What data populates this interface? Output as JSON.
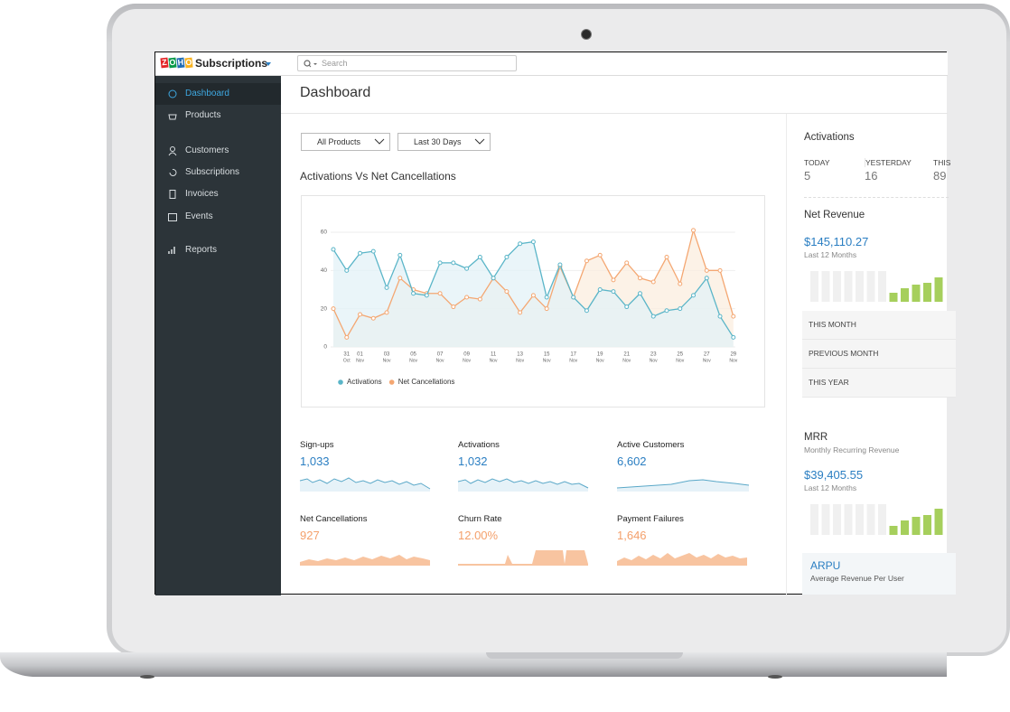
{
  "app": {
    "logo": [
      "Z",
      "O",
      "H",
      "O"
    ],
    "name": "Subscriptions",
    "search_placeholder": "Search"
  },
  "sidebar": {
    "items": [
      "Dashboard",
      "Products",
      "Customers",
      "Subscriptions",
      "Invoices",
      "Events",
      "Reports"
    ],
    "active": 0
  },
  "header": {
    "title": "Dashboard"
  },
  "filters": [
    "All Products",
    "Last 30 Days"
  ],
  "chart_data": {
    "type": "line",
    "title": "Activations Vs Net Cancellations",
    "categories": [
      null,
      [
        "31",
        "Oct"
      ],
      [
        "01",
        "Nov"
      ],
      null,
      [
        "03",
        "Nov"
      ],
      null,
      [
        "05",
        "Nov"
      ],
      null,
      [
        "07",
        "Nov"
      ],
      null,
      [
        "09",
        "Nov"
      ],
      null,
      [
        "11",
        "Nov"
      ],
      null,
      [
        "13",
        "Nov"
      ],
      null,
      [
        "15",
        "Nov"
      ],
      null,
      [
        "17",
        "Nov"
      ],
      null,
      [
        "19",
        "Nov"
      ],
      null,
      [
        "21",
        "Nov"
      ],
      null,
      [
        "23",
        "Nov"
      ],
      null,
      [
        "25",
        "Nov"
      ],
      null,
      [
        "27",
        "Nov"
      ],
      null,
      [
        "29",
        "Nov"
      ]
    ],
    "series": [
      {
        "name": "Activations",
        "color": "#5ab5c8",
        "fill": "#e3f1f7",
        "values": [
          51,
          40,
          49,
          50,
          31,
          48,
          28,
          27,
          44,
          44,
          41,
          47,
          36,
          47,
          54,
          55,
          26,
          43,
          26,
          19,
          30,
          29,
          21,
          28,
          16,
          19,
          20,
          27,
          36,
          16,
          5
        ]
      },
      {
        "name": "Net Cancellations",
        "color": "#f4a772",
        "fill": "#fbeedf",
        "values": [
          20,
          5,
          17,
          15,
          18,
          36,
          30,
          28,
          28,
          21,
          26,
          25,
          36,
          29,
          18,
          27,
          20,
          42,
          26,
          45,
          48,
          35,
          44,
          36,
          34,
          47,
          33,
          61,
          40,
          40,
          16
        ]
      }
    ],
    "ylim": [
      0,
      60
    ],
    "yticks": [
      0,
      20,
      40,
      60
    ],
    "grid": true,
    "legend": "bottom-left"
  },
  "kpis": [
    {
      "label": "Sign-ups",
      "value": "1,033",
      "color": "#2a7ec2"
    },
    {
      "label": "Activations",
      "value": "1,032",
      "color": "#2a7ec2"
    },
    {
      "label": "Active Customers",
      "value": "6,602",
      "color": "#2a7ec2"
    },
    {
      "label": "Net Cancellations",
      "value": "927",
      "color": "#f4a06b"
    },
    {
      "label": "Churn Rate",
      "value": "12.00%",
      "color": "#f4a06b"
    },
    {
      "label": "Payment Failures",
      "value": "1,646",
      "color": "#f4a06b"
    }
  ],
  "activations": {
    "title": "Activations",
    "columns": [
      {
        "label": "TODAY",
        "value": "5"
      },
      {
        "label": "YESTERDAY",
        "value": "16"
      },
      {
        "label": "THIS",
        "value": "89"
      }
    ]
  },
  "net_revenue": {
    "title": "Net Revenue",
    "amount": "$145,110.27",
    "period": "Last 12 Months",
    "rows": [
      "THIS MONTH",
      "PREVIOUS MONTH",
      "THIS YEAR"
    ]
  },
  "mrr": {
    "title": "MRR",
    "subtitle": "Monthly Recurring Revenue",
    "amount": "$39,405.55",
    "period": "Last 12 Months"
  },
  "arpu": {
    "title": "ARPU",
    "subtitle": "Average Revenue Per User"
  }
}
